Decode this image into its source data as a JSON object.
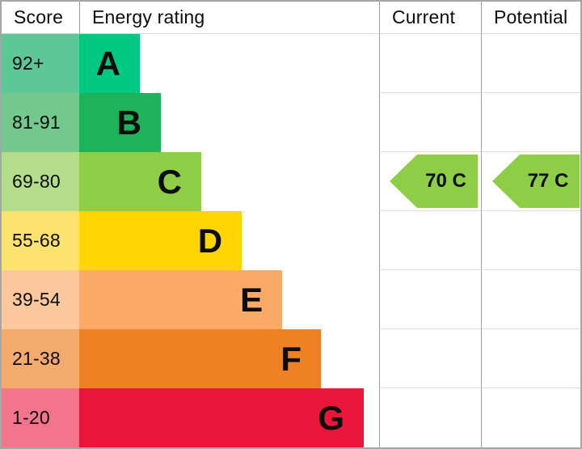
{
  "header": {
    "score": "Score",
    "energy_rating": "Energy rating",
    "current": "Current",
    "potential": "Potential"
  },
  "chart_data": {
    "type": "bar",
    "title": "Energy rating",
    "categories": [
      "A",
      "B",
      "C",
      "D",
      "E",
      "F",
      "G"
    ],
    "score_ranges": [
      "92+",
      "81-91",
      "69-80",
      "55-68",
      "39-54",
      "21-38",
      "1-20"
    ],
    "bands": [
      {
        "letter": "A",
        "range": "92+",
        "color": "#00c781",
        "score_cell_color": "#5fc698",
        "width_pct": 20.2
      },
      {
        "letter": "B",
        "range": "81-91",
        "color": "#1db35b",
        "score_cell_color": "#73c98d",
        "width_pct": 27.2
      },
      {
        "letter": "C",
        "range": "69-80",
        "color": "#8dce46",
        "score_cell_color": "#b3dd8b",
        "width_pct": 40.7
      },
      {
        "letter": "D",
        "range": "55-68",
        "color": "#fed500",
        "score_cell_color": "#fce26e",
        "width_pct": 54.2
      },
      {
        "letter": "E",
        "range": "39-54",
        "color": "#fba967",
        "score_cell_color": "#fdc89d",
        "width_pct": 67.7
      },
      {
        "letter": "F",
        "range": "21-38",
        "color": "#ee8124",
        "score_cell_color": "#f4aa6c",
        "width_pct": 80.6
      },
      {
        "letter": "G",
        "range": "1-20",
        "color": "#e9153b",
        "score_cell_color": "#f3758b",
        "width_pct": 94.9
      }
    ],
    "current": {
      "value": 70,
      "band": "C",
      "label": "70 C",
      "color": "#8dce46",
      "row_index": 2
    },
    "potential": {
      "value": 77,
      "band": "C",
      "label": "77 C",
      "color": "#8dce46",
      "row_index": 2
    },
    "legend_position": "none",
    "grid": false
  },
  "colors": {
    "outer_border": "#a4a7aa",
    "column_divider": "#989c9f",
    "row_separator": "#dcdddd",
    "header_underline": "#d6d8d9",
    "text": "#0b0c0c"
  }
}
